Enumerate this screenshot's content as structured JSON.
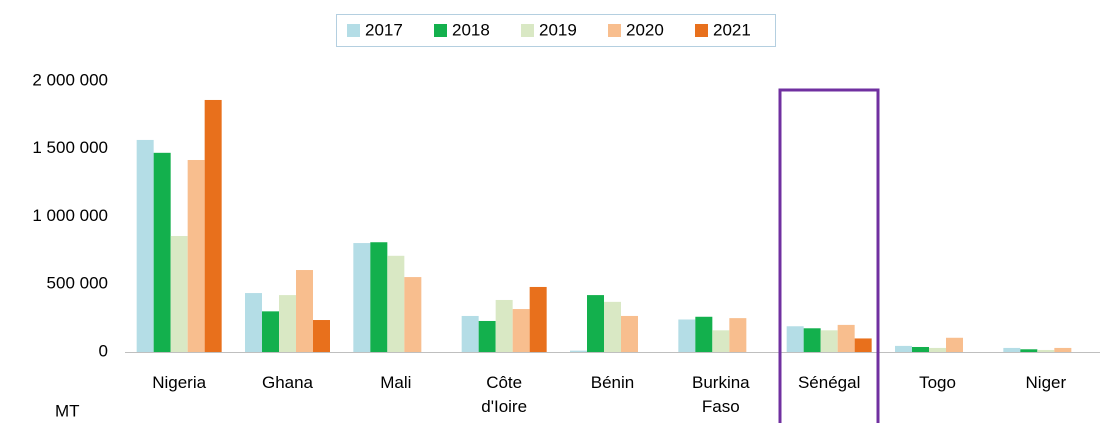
{
  "chart_data": {
    "type": "bar",
    "y_axis_label": "MT",
    "categories": [
      "Nigeria",
      "Ghana",
      "Mali",
      "Côte d'Ioire",
      "Bénin",
      "Burkina Faso",
      "Sénégal",
      "Togo",
      "Niger"
    ],
    "series": [
      {
        "name": "2017",
        "color": "#b4dde6",
        "values": [
          1565000,
          435000,
          804000,
          266000,
          10000,
          240000,
          190000,
          45000,
          30000
        ]
      },
      {
        "name": "2018",
        "color": "#13b04d",
        "values": [
          1470000,
          300000,
          810000,
          229000,
          420000,
          260000,
          175000,
          37000,
          20000
        ]
      },
      {
        "name": "2019",
        "color": "#d9e8c4",
        "values": [
          856000,
          420000,
          710000,
          384000,
          370000,
          160000,
          160000,
          30000,
          15000
        ]
      },
      {
        "name": "2020",
        "color": "#f8be8e",
        "values": [
          1417000,
          605000,
          553000,
          317000,
          266000,
          250000,
          200000,
          105000,
          30000
        ]
      },
      {
        "name": "2021",
        "color": "#e8701c",
        "values": [
          1860000,
          236000,
          null,
          480000,
          null,
          null,
          100000,
          null,
          null
        ]
      }
    ],
    "ylim": [
      0,
      2000000
    ],
    "yticks": [
      0,
      {
        "value": 500000,
        "label": "500 000"
      },
      {
        "value": 1000000,
        "label": "1 000 000"
      },
      {
        "value": 1500000,
        "label": "1 500 000"
      },
      {
        "value": 2000000,
        "label": "2 000 000"
      }
    ],
    "grid": false,
    "legend": "top"
  }
}
